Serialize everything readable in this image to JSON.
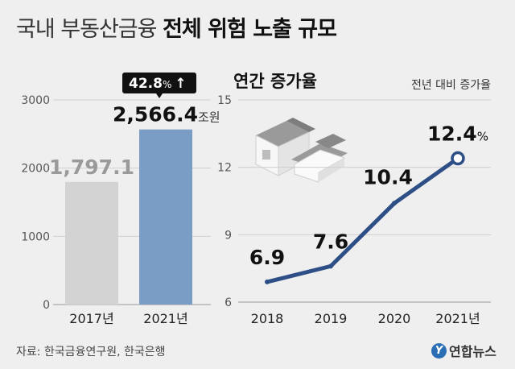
{
  "title": {
    "light": "국내 부동산금융",
    "bold": "전체 위험 노출 규모"
  },
  "source": "자료: 한국금융연구원, 한국은행",
  "logo": {
    "mark": "Y",
    "text": "연합뉴스"
  },
  "colors": {
    "bar_2017": "#d3d3d3",
    "bar_2021": "#7a9dc6",
    "line": "#2e4f86",
    "badge_bg": "#111111",
    "grid": "#cfcfcf"
  },
  "chart_data": [
    {
      "type": "bar",
      "categories": [
        "2017년",
        "2021년"
      ],
      "values": [
        1797.1,
        2566.4
      ],
      "value_labels": [
        "1,797.1",
        "2,566.4"
      ],
      "value_unit": "조원",
      "ylim": [
        0,
        3000
      ],
      "yticks": [
        "0",
        "1000",
        "2000",
        "3000"
      ],
      "grid": true,
      "growth_badge": {
        "value": "42.8",
        "unit": "%",
        "arrow": "↑"
      }
    },
    {
      "type": "line",
      "title": "연간 증가율",
      "note": "전년 대비 증가율",
      "categories": [
        "2018",
        "2019",
        "2020",
        "2021년"
      ],
      "values": [
        6.9,
        7.6,
        10.4,
        12.4
      ],
      "value_labels": [
        "6.9",
        "7.6",
        "10.4",
        "12.4"
      ],
      "last_unit": "%",
      "ylim": [
        6,
        15
      ],
      "yticks": [
        "6",
        "9",
        "12",
        "15"
      ],
      "grid": true
    }
  ]
}
